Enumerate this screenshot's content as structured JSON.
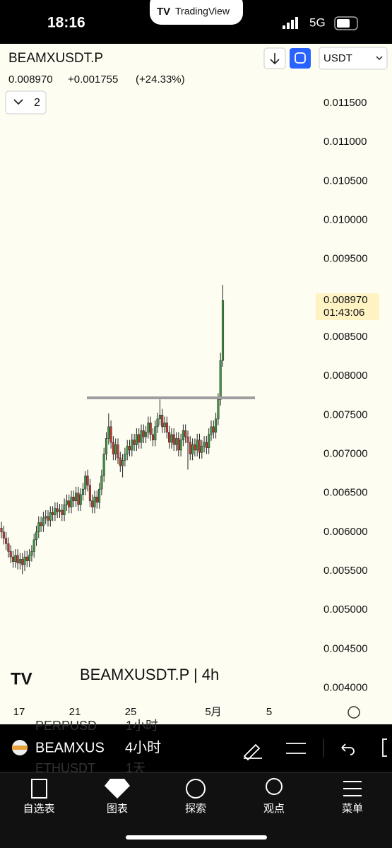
{
  "status_bar": {
    "time": "18:16",
    "app": "TradingView",
    "network": "5G"
  },
  "header": {
    "symbol": "BEAMXUSDT.P",
    "currency": "USDT",
    "last": "0.008970",
    "change": "+0.001755",
    "change_pct": "(+24.33%)",
    "indicator_count": "2"
  },
  "chart_data": {
    "type": "candlestick",
    "watermark": "BEAMXUSDT.P | 4h",
    "open": [
      0.00605,
      0.006,
      0.00592,
      0.00585,
      0.00575,
      0.00568,
      0.00562,
      0.0057,
      0.0056,
      0.00565,
      0.00558,
      0.00568,
      0.00563,
      0.0057,
      0.00575,
      0.0059,
      0.006,
      0.00612,
      0.00608,
      0.00618,
      0.0062,
      0.00615,
      0.00625,
      0.00622,
      0.0063,
      0.00626,
      0.00628,
      0.00622,
      0.00635,
      0.0064,
      0.00632,
      0.00645,
      0.0064,
      0.0065,
      0.00635,
      0.00648,
      0.00655,
      0.00672,
      0.0066,
      0.0064,
      0.00632,
      0.00645,
      0.00638,
      0.00655,
      0.00672,
      0.007,
      0.0072,
      0.00735,
      0.00715,
      0.007,
      0.00712,
      0.00695,
      0.00685,
      0.00692,
      0.007,
      0.0071,
      0.00705,
      0.00718,
      0.00712,
      0.00725,
      0.00715,
      0.0073,
      0.00722,
      0.00728,
      0.0074,
      0.00725,
      0.00718,
      0.00735,
      0.00745,
      0.0075,
      0.00735,
      0.0074,
      0.00728,
      0.00715,
      0.00725,
      0.00712,
      0.0072,
      0.00705,
      0.00718,
      0.0073,
      0.00722,
      0.00715,
      0.007,
      0.00712,
      0.00705,
      0.00718,
      0.00702,
      0.0071,
      0.00715,
      0.00708,
      0.00725,
      0.00735,
      0.00728,
      0.00745,
      0.0077,
      0.0082
    ],
    "high": [
      0.00613,
      0.00608,
      0.006,
      0.00593,
      0.00583,
      0.00576,
      0.00578,
      0.00578,
      0.00573,
      0.00573,
      0.00576,
      0.00576,
      0.00578,
      0.00583,
      0.00598,
      0.00608,
      0.0062,
      0.0062,
      0.00626,
      0.00628,
      0.00628,
      0.00633,
      0.00633,
      0.00638,
      0.00638,
      0.00636,
      0.00636,
      0.00643,
      0.00648,
      0.00648,
      0.00653,
      0.00653,
      0.00658,
      0.00658,
      0.00656,
      0.00663,
      0.00678,
      0.0068,
      0.00668,
      0.00648,
      0.00653,
      0.00653,
      0.00663,
      0.0068,
      0.00708,
      0.00728,
      0.00752,
      0.00743,
      0.00723,
      0.0072,
      0.0072,
      0.00703,
      0.007,
      0.00708,
      0.00718,
      0.00718,
      0.00726,
      0.00726,
      0.00733,
      0.00733,
      0.00738,
      0.00738,
      0.00736,
      0.00748,
      0.00748,
      0.00733,
      0.00743,
      0.00753,
      0.0077,
      0.00758,
      0.00748,
      0.00748,
      0.00736,
      0.00733,
      0.00733,
      0.00728,
      0.00728,
      0.00726,
      0.00738,
      0.00738,
      0.0073,
      0.00723,
      0.0072,
      0.0072,
      0.00726,
      0.00726,
      0.00718,
      0.00723,
      0.00723,
      0.00733,
      0.00743,
      0.00743,
      0.00753,
      0.00778,
      0.0083,
      0.00917
    ],
    "low": [
      0.00592,
      0.00584,
      0.00577,
      0.00567,
      0.0056,
      0.00554,
      0.00554,
      0.00552,
      0.00552,
      0.00546,
      0.0055,
      0.00555,
      0.00555,
      0.00562,
      0.00567,
      0.00582,
      0.00592,
      0.006,
      0.006,
      0.0061,
      0.00607,
      0.00607,
      0.00614,
      0.00614,
      0.00618,
      0.00618,
      0.00614,
      0.00614,
      0.00627,
      0.00624,
      0.00624,
      0.00632,
      0.00632,
      0.00627,
      0.00627,
      0.0064,
      0.00647,
      0.00652,
      0.00632,
      0.00624,
      0.00624,
      0.0063,
      0.0063,
      0.00647,
      0.00664,
      0.00692,
      0.00712,
      0.00707,
      0.00692,
      0.00692,
      0.00687,
      0.00677,
      0.0067,
      0.00684,
      0.00692,
      0.00697,
      0.00697,
      0.00704,
      0.00704,
      0.00707,
      0.00707,
      0.00714,
      0.00714,
      0.0072,
      0.00717,
      0.0071,
      0.0071,
      0.00727,
      0.00737,
      0.00727,
      0.00727,
      0.0072,
      0.00707,
      0.00707,
      0.00704,
      0.00704,
      0.00697,
      0.00697,
      0.0071,
      0.00714,
      0.0068,
      0.00692,
      0.00692,
      0.00697,
      0.00697,
      0.00694,
      0.00694,
      0.00702,
      0.007,
      0.007,
      0.00717,
      0.0072,
      0.0072,
      0.00737,
      0.00762,
      0.00812
    ],
    "close": [
      0.006,
      0.00592,
      0.00585,
      0.00575,
      0.00568,
      0.00562,
      0.0057,
      0.0056,
      0.00565,
      0.00558,
      0.00568,
      0.00563,
      0.0057,
      0.00575,
      0.0059,
      0.006,
      0.00612,
      0.00608,
      0.00618,
      0.0062,
      0.00615,
      0.00625,
      0.00622,
      0.0063,
      0.00626,
      0.00628,
      0.00622,
      0.00635,
      0.0064,
      0.00632,
      0.00645,
      0.0064,
      0.0065,
      0.00635,
      0.00648,
      0.00655,
      0.00672,
      0.0066,
      0.0064,
      0.00632,
      0.00645,
      0.00638,
      0.00655,
      0.00672,
      0.007,
      0.0072,
      0.00735,
      0.00715,
      0.007,
      0.00712,
      0.00695,
      0.00685,
      0.00692,
      0.007,
      0.0071,
      0.00705,
      0.00718,
      0.00712,
      0.00725,
      0.00715,
      0.0073,
      0.00722,
      0.00728,
      0.0074,
      0.00725,
      0.00718,
      0.00735,
      0.00745,
      0.0075,
      0.00735,
      0.0074,
      0.00728,
      0.00715,
      0.00725,
      0.00712,
      0.0072,
      0.00705,
      0.00718,
      0.0073,
      0.00722,
      0.00715,
      0.007,
      0.00712,
      0.00705,
      0.00718,
      0.00702,
      0.0071,
      0.00715,
      0.00708,
      0.00725,
      0.00735,
      0.00728,
      0.00745,
      0.0077,
      0.0082,
      0.00897
    ],
    "up_color": "#3f9a45",
    "down_color": "#c23b32",
    "horizontal_line": 0.00772,
    "price_label": {
      "value": 0.00897,
      "label": "0.008970"
    },
    "countdown": "01:43:06",
    "ylim": [
      0.00385,
      0.01228
    ],
    "yticks": [
      {
        "value": 0.0115,
        "label": "0.011500"
      },
      {
        "value": 0.011,
        "label": "0.011000"
      },
      {
        "value": 0.0105,
        "label": "0.010500"
      },
      {
        "value": 0.01,
        "label": "0.010000"
      },
      {
        "value": 0.0095,
        "label": "0.009500"
      },
      {
        "value": 0.0085,
        "label": "0.008500"
      },
      {
        "value": 0.008,
        "label": "0.008000"
      },
      {
        "value": 0.0075,
        "label": "0.007500"
      },
      {
        "value": 0.007,
        "label": "0.007000"
      },
      {
        "value": 0.0065,
        "label": "0.006500"
      },
      {
        "value": 0.006,
        "label": "0.006000"
      },
      {
        "value": 0.0055,
        "label": "0.005500"
      },
      {
        "value": 0.005,
        "label": "0.005000"
      },
      {
        "value": 0.0045,
        "label": "0.004500"
      },
      {
        "value": 0.004,
        "label": "0.004000"
      }
    ],
    "x_labels": [
      "17",
      "21",
      "25",
      "5月",
      "5"
    ]
  },
  "symbol_bar": {
    "symbol": "BEAMXUS",
    "interval": "4小时",
    "behind": [
      [
        "PERPUSD",
        "1小时"
      ],
      [
        "ETHUSDT",
        "1天"
      ]
    ]
  },
  "tabs": [
    "自选表",
    "图表",
    "探索",
    "观点",
    "菜单"
  ]
}
